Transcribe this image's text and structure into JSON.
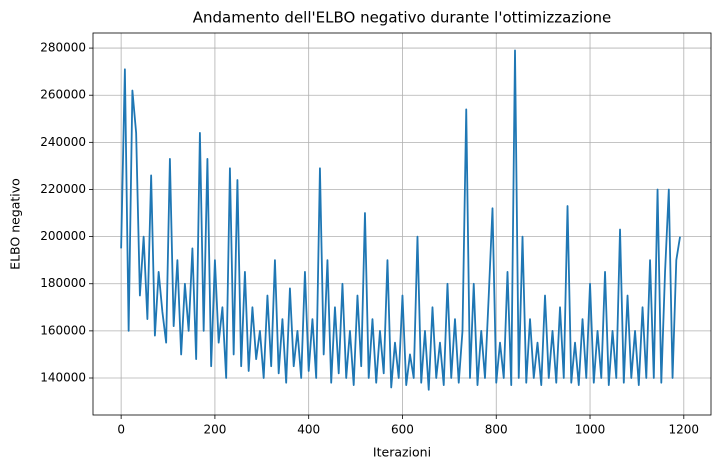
{
  "chart_data": {
    "type": "line",
    "title": "Andamento dell'ELBO negativo durante l'ottimizzazione",
    "x_label": "Iterazioni",
    "y_label": "ELBO negativo",
    "color": "#1f77b4",
    "grid": true,
    "xlim": [
      -60,
      1258
    ],
    "ylim": [
      124300,
      286400
    ],
    "xticks": [
      0,
      200,
      400,
      600,
      800,
      1000,
      1200
    ],
    "yticks": [
      140000,
      160000,
      180000,
      200000,
      220000,
      240000,
      260000,
      280000
    ],
    "x": [
      0,
      8,
      16,
      24,
      32,
      40,
      48,
      56,
      64,
      72,
      80,
      88,
      96,
      104,
      112,
      120,
      128,
      136,
      144,
      152,
      160,
      168,
      176,
      184,
      192,
      200,
      208,
      216,
      224,
      232,
      240,
      248,
      256,
      264,
      272,
      280,
      288,
      296,
      304,
      312,
      320,
      328,
      336,
      344,
      352,
      360,
      368,
      376,
      384,
      392,
      400,
      408,
      416,
      424,
      432,
      440,
      448,
      456,
      464,
      472,
      480,
      488,
      496,
      504,
      512,
      520,
      528,
      536,
      544,
      552,
      560,
      568,
      576,
      584,
      592,
      600,
      608,
      616,
      624,
      632,
      640,
      648,
      656,
      664,
      672,
      680,
      688,
      696,
      704,
      712,
      720,
      728,
      736,
      744,
      752,
      760,
      768,
      776,
      784,
      792,
      800,
      808,
      816,
      824,
      832,
      840,
      848,
      856,
      864,
      872,
      880,
      888,
      896,
      904,
      912,
      920,
      928,
      936,
      944,
      952,
      960,
      968,
      976,
      984,
      992,
      1000,
      1008,
      1016,
      1024,
      1032,
      1040,
      1048,
      1056,
      1064,
      1072,
      1080,
      1088,
      1096,
      1104,
      1112,
      1120,
      1128,
      1136,
      1144,
      1152,
      1160,
      1168,
      1176,
      1184,
      1192
    ],
    "values": [
      195000,
      271000,
      160000,
      262000,
      244000,
      175000,
      200000,
      165000,
      226000,
      158000,
      185000,
      168000,
      155000,
      233000,
      162000,
      190000,
      150000,
      180000,
      160000,
      195000,
      148000,
      244000,
      160000,
      233000,
      145000,
      190000,
      155000,
      170000,
      140000,
      229000,
      150000,
      224000,
      145000,
      185000,
      143000,
      170000,
      148000,
      160000,
      140000,
      175000,
      145000,
      190000,
      142000,
      165000,
      138000,
      178000,
      145000,
      160000,
      140000,
      185000,
      143000,
      165000,
      140000,
      229000,
      150000,
      190000,
      138000,
      170000,
      142000,
      180000,
      140000,
      160000,
      137000,
      175000,
      145000,
      210000,
      140000,
      165000,
      138000,
      160000,
      142000,
      190000,
      136000,
      155000,
      140000,
      175000,
      137000,
      150000,
      140000,
      200000,
      138000,
      160000,
      135000,
      170000,
      140000,
      155000,
      137000,
      180000,
      140000,
      165000,
      138000,
      160000,
      254000,
      140000,
      180000,
      137000,
      160000,
      140000,
      175000,
      212000,
      138000,
      155000,
      140000,
      185000,
      137000,
      279000,
      140000,
      200000,
      138000,
      165000,
      140000,
      155000,
      137000,
      175000,
      140000,
      160000,
      138000,
      170000,
      140000,
      213000,
      138000,
      155000,
      137000,
      165000,
      140000,
      180000,
      138000,
      160000,
      140000,
      185000,
      137000,
      160000,
      140000,
      203000,
      138000,
      175000,
      140000,
      160000,
      137000,
      170000,
      140000,
      190000,
      140000,
      220000,
      138000,
      185000,
      220000,
      140000,
      190000,
      200000
    ]
  }
}
